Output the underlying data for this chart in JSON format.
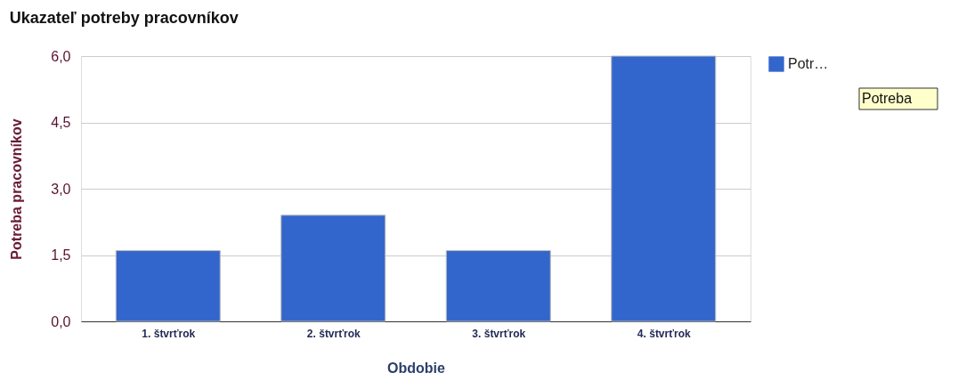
{
  "chart_data": {
    "type": "bar",
    "title": "Ukazateľ potreby pracovníkov",
    "xlabel": "Obdobie",
    "ylabel": "Potreba pracovníkov",
    "categories": [
      "1. štvrťrok",
      "2. štvrťrok",
      "3. štvrťrok",
      "4. štvrťrok"
    ],
    "series": [
      {
        "name": "Potr…",
        "color": "#3366cc",
        "values": [
          1.6,
          2.4,
          1.6,
          6.0
        ]
      }
    ],
    "ylim": [
      0,
      6
    ],
    "yticks": [
      {
        "value": 0,
        "label": "0,0"
      },
      {
        "value": 1.5,
        "label": "1,5"
      },
      {
        "value": 3,
        "label": "3,0"
      },
      {
        "value": 4.5,
        "label": "4,5"
      },
      {
        "value": 6,
        "label": "6,0"
      }
    ],
    "grid": "y",
    "legend": "top right",
    "annotations": [
      "Potreba"
    ]
  }
}
